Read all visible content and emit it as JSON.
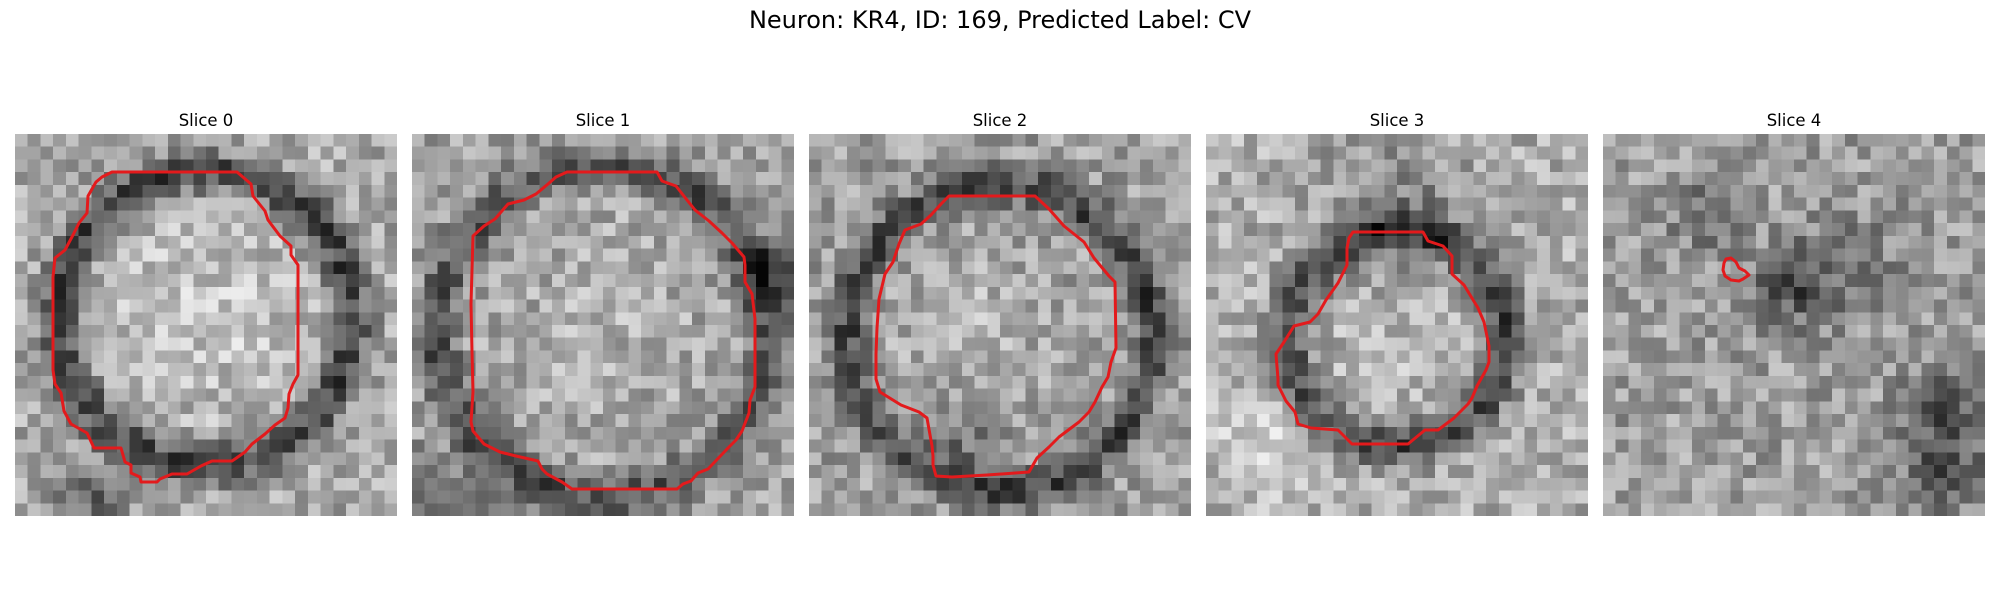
{
  "figure": {
    "title": "Neuron: KR4, ID: 169, Predicted Label: CV"
  },
  "image_style": {
    "colormap": "gray",
    "grid_size": 30,
    "contour_color": "#e31a1c"
  },
  "slices": [
    {
      "label": "Slice 0"
    },
    {
      "label": "Slice 1"
    },
    {
      "label": "Slice 2"
    },
    {
      "label": "Slice 3"
    },
    {
      "label": "Slice 4"
    }
  ]
}
